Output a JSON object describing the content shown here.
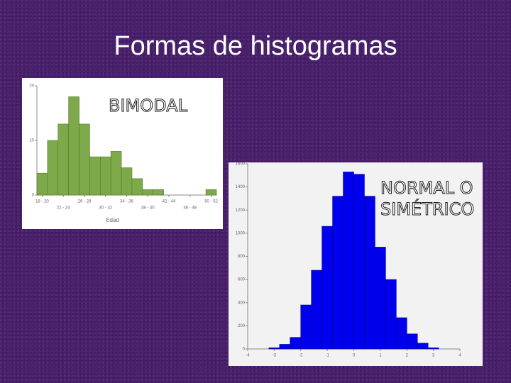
{
  "slide": {
    "title": "Formas de histogramas"
  },
  "chart_data": [
    {
      "type": "histogram",
      "annotation": "BIMODAL",
      "x_label": "Edad",
      "bins": [
        18,
        20,
        22,
        24,
        26,
        28,
        30,
        32,
        34,
        36,
        38,
        40,
        42,
        44,
        46,
        48,
        50,
        52
      ],
      "values": [
        4,
        10,
        13,
        18,
        13,
        7,
        7,
        8,
        5,
        3,
        1,
        1,
        0,
        0,
        0,
        0,
        1
      ],
      "color": "#7ea94a",
      "edge_color": "#4f7a2a",
      "xlim": [
        18,
        52
      ],
      "ylim": [
        0,
        20
      ],
      "yticks": [
        0,
        10,
        20
      ],
      "xticks": [
        {
          "value": 19,
          "label": "18 - 20"
        },
        {
          "value": 23,
          "label": "22 - 24"
        },
        {
          "value": 27,
          "label": "26 - 28"
        },
        {
          "value": 31,
          "label": "30 - 32"
        },
        {
          "value": 35,
          "label": "34 - 36"
        },
        {
          "value": 39,
          "label": "38 - 40"
        },
        {
          "value": 43,
          "label": "42 - 44"
        },
        {
          "value": 47,
          "label": "46 - 48"
        },
        {
          "value": 51,
          "label": "50 - 52"
        }
      ]
    },
    {
      "type": "histogram",
      "annotation": "NORMAL O SIMÉTRICO",
      "bins": [
        -3.2,
        -2.8,
        -2.4,
        -2,
        -1.6,
        -1.2,
        -0.8,
        -0.4,
        0,
        0.4,
        0.8,
        1.2,
        1.6,
        2,
        2.4,
        2.8,
        3.2
      ],
      "values": [
        10,
        40,
        100,
        380,
        680,
        1060,
        1320,
        1530,
        1510,
        1320,
        880,
        600,
        270,
        130,
        50,
        10
      ],
      "color": "#0000ee",
      "edge_color": "#000088",
      "xlim": [
        -4,
        4
      ],
      "ylim": [
        0,
        1600
      ],
      "yticks": [
        0,
        200,
        400,
        600,
        800,
        1000,
        1200,
        1400,
        1600
      ],
      "xticks": [
        -4,
        -3,
        -2,
        -1,
        0,
        1,
        2,
        3,
        4
      ]
    }
  ]
}
